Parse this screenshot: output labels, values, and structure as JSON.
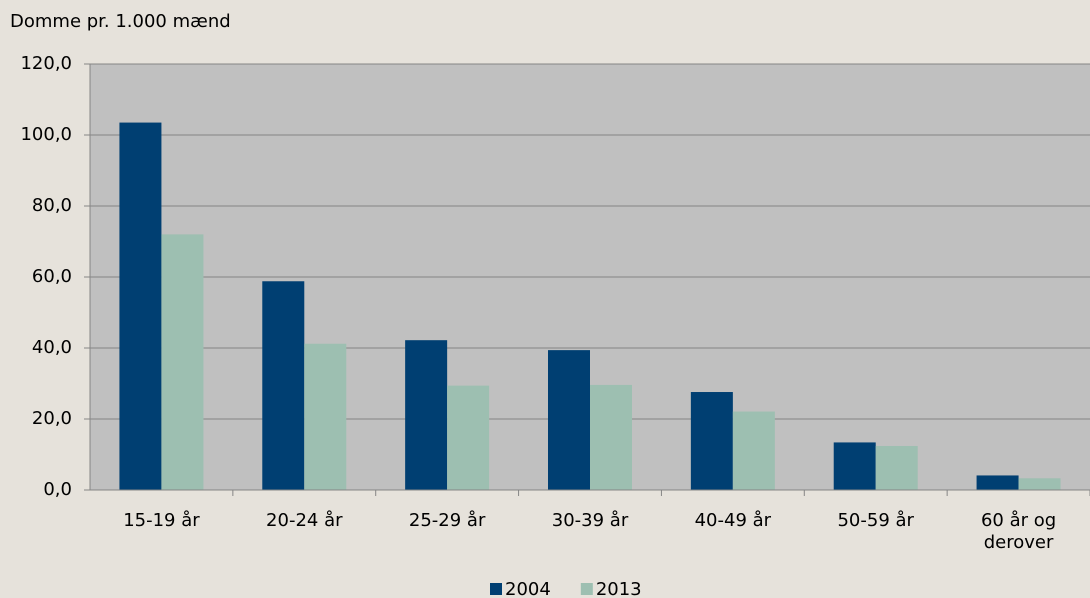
{
  "chart_data": {
    "type": "bar",
    "title": "Domme pr. 1.000 mænd",
    "categories": [
      "15-19 år",
      "20-24 år",
      "25-29 år",
      "30-39 år",
      "40-49 år",
      "50-59 år",
      "60 år og derover"
    ],
    "series": [
      {
        "name": "2004",
        "color": "#003f72",
        "values": [
          103.5,
          58.8,
          42.2,
          39.4,
          27.6,
          13.4,
          4.1
        ]
      },
      {
        "name": "2013",
        "color": "#9dbfb1",
        "values": [
          72.0,
          41.2,
          29.4,
          29.6,
          22.1,
          12.4,
          3.3
        ]
      }
    ],
    "ylim": [
      0,
      120
    ],
    "yticks": [
      {
        "value": 0,
        "label": "0,0"
      },
      {
        "value": 20,
        "label": "20,0"
      },
      {
        "value": 40,
        "label": "40,0"
      },
      {
        "value": 60,
        "label": "60,0"
      },
      {
        "value": 80,
        "label": "80,0"
      },
      {
        "value": 100,
        "label": "100,0"
      },
      {
        "value": 120,
        "label": "120,0"
      }
    ],
    "grid": true,
    "legend": "bottom"
  }
}
